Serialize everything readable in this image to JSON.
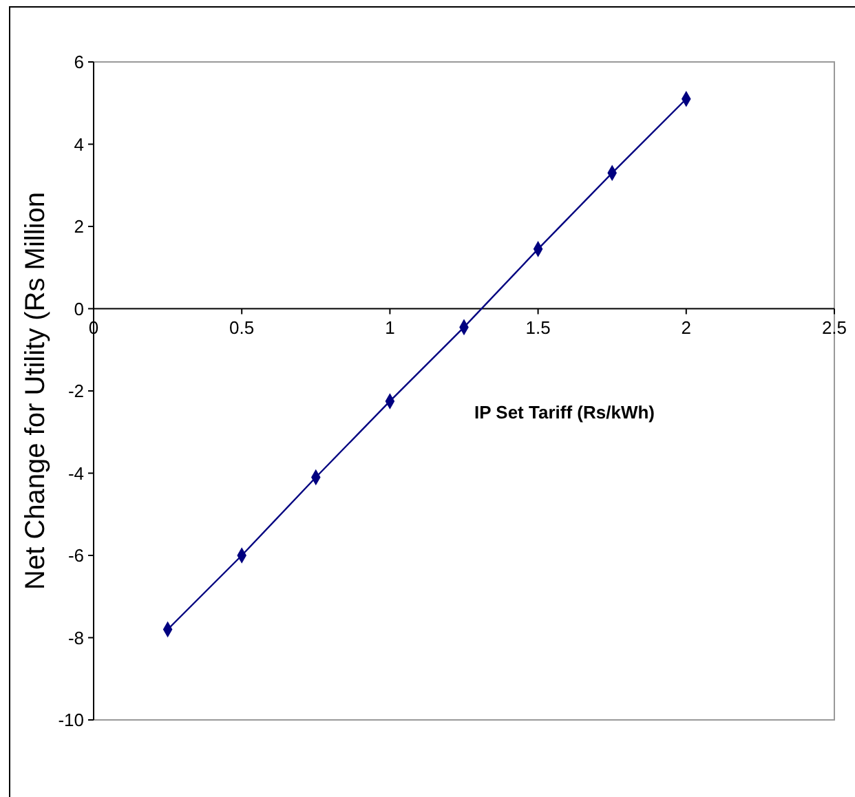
{
  "chart_data": {
    "type": "line",
    "xlabel": "IP Set Tariff (Rs/kWh)",
    "ylabel": "Net Change for Utility (Rs Million",
    "x": [
      0.25,
      0.5,
      0.75,
      1,
      1.25,
      1.5,
      1.75,
      2
    ],
    "series": [
      {
        "color": "#000080",
        "values": [
          -7.8,
          -6.0,
          -4.1,
          -2.25,
          -0.45,
          1.45,
          3.3,
          5.1
        ]
      }
    ],
    "xlim": [
      0,
      2.5
    ],
    "xticks": [
      0,
      0.5,
      1,
      1.5,
      2,
      2.5
    ],
    "ylim": [
      -10,
      6
    ],
    "yticks": [
      -10,
      -8,
      -6,
      -4,
      -2,
      0,
      2,
      4,
      6
    ],
    "marker": "diamond",
    "line_style": "solid",
    "grid": false
  }
}
